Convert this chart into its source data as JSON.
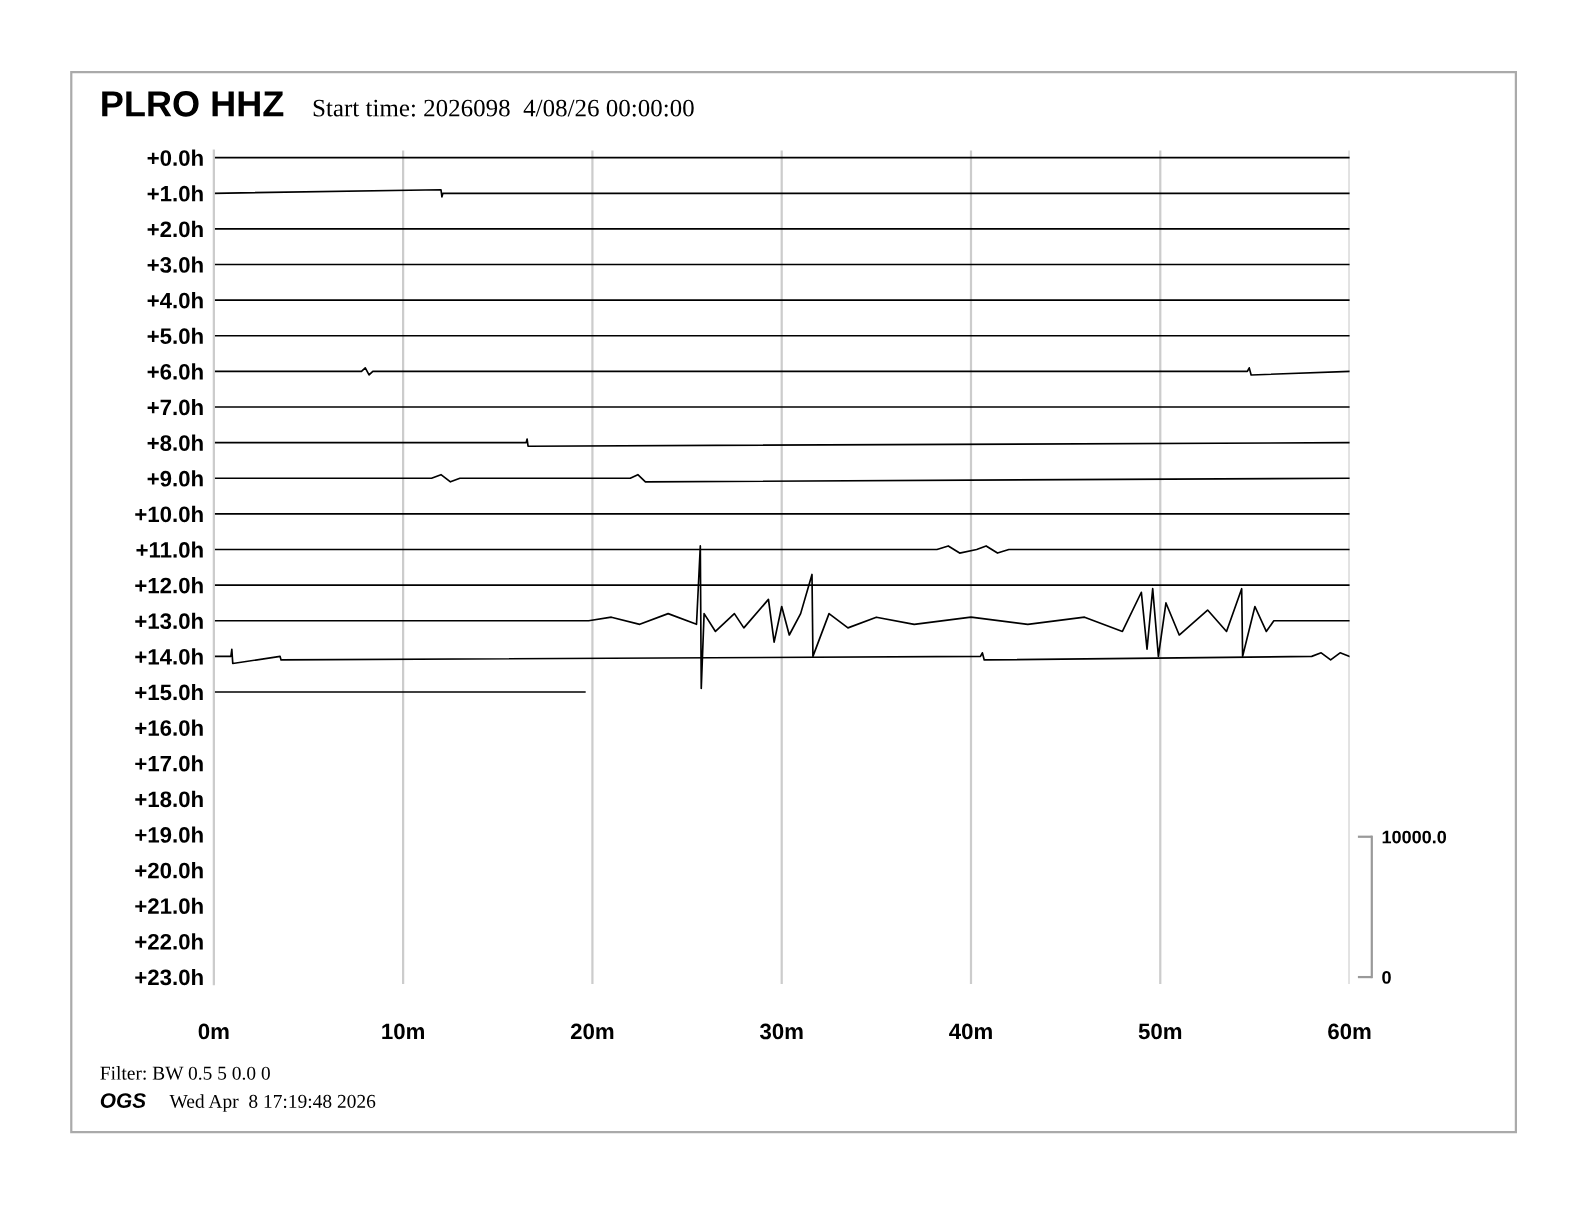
{
  "chart_data": {
    "type": "line",
    "title": "PLRO HHZ",
    "subtitle": "Start time: 2026098  4/08/26 00:00:00",
    "annotations": [
      "Filter: BW 0.5 5 0.0 0",
      "OGS",
      "Wed Apr  8 17:19:48 2026"
    ],
    "xlim": [
      0,
      60
    ],
    "xticks": [
      {
        "value": 0,
        "label": "0m"
      },
      {
        "value": 10,
        "label": "10m"
      },
      {
        "value": 20,
        "label": "20m"
      },
      {
        "value": 30,
        "label": "30m"
      },
      {
        "value": 40,
        "label": "40m"
      },
      {
        "value": 50,
        "label": "50m"
      },
      {
        "value": 60,
        "label": "60m"
      }
    ],
    "ylim": [
      23.2,
      -0.2
    ],
    "yticks": [
      {
        "value": 0,
        "label": "+0.0h"
      },
      {
        "value": 1,
        "label": "+1.0h"
      },
      {
        "value": 2,
        "label": "+2.0h"
      },
      {
        "value": 3,
        "label": "+3.0h"
      },
      {
        "value": 4,
        "label": "+4.0h"
      },
      {
        "value": 5,
        "label": "+5.0h"
      },
      {
        "value": 6,
        "label": "+6.0h"
      },
      {
        "value": 7,
        "label": "+7.0h"
      },
      {
        "value": 8,
        "label": "+8.0h"
      },
      {
        "value": 9,
        "label": "+9.0h"
      },
      {
        "value": 10,
        "label": "+10.0h"
      },
      {
        "value": 11,
        "label": "+11.0h"
      },
      {
        "value": 12,
        "label": "+12.0h"
      },
      {
        "value": 13,
        "label": "+13.0h"
      },
      {
        "value": 14,
        "label": "+14.0h"
      },
      {
        "value": 15,
        "label": "+15.0h"
      },
      {
        "value": 16,
        "label": "+16.0h"
      },
      {
        "value": 17,
        "label": "+17.0h"
      },
      {
        "value": 18,
        "label": "+18.0h"
      },
      {
        "value": 19,
        "label": "+19.0h"
      },
      {
        "value": 20,
        "label": "+20.0h"
      },
      {
        "value": 21,
        "label": "+21.0h"
      },
      {
        "value": 22,
        "label": "+22.0h"
      },
      {
        "value": 23,
        "label": "+23.0h"
      }
    ],
    "y2lim": [
      -500,
      58900
    ],
    "y2ticks": [
      {
        "value": 0,
        "label": "0"
      },
      {
        "value": 10000,
        "label": "10000.0"
      }
    ],
    "grid": "x",
    "series": [
      {
        "color": "#000000",
        "x": [
          0,
          60
        ],
        "values": [
          0,
          0
        ]
      },
      {
        "color": "#000000",
        "x": [
          0,
          12.0,
          12.05,
          12.1,
          60
        ],
        "values": [
          1,
          0.9,
          1.1,
          1,
          1
        ]
      },
      {
        "color": "#000000",
        "x": [
          0,
          60
        ],
        "values": [
          2,
          2
        ]
      },
      {
        "color": "#000000",
        "x": [
          0,
          60
        ],
        "values": [
          3,
          3
        ]
      },
      {
        "color": "#000000",
        "x": [
          0,
          60
        ],
        "values": [
          4,
          4
        ]
      },
      {
        "color": "#000000",
        "x": [
          0,
          60
        ],
        "values": [
          5,
          5
        ]
      },
      {
        "color": "#000000",
        "x": [
          0,
          7.8,
          8.0,
          8.2,
          8.4,
          54.6,
          54.7,
          54.8,
          60
        ],
        "values": [
          6,
          6,
          5.9,
          6.1,
          6,
          6,
          5.9,
          6.1,
          6
        ]
      },
      {
        "color": "#000000",
        "x": [
          0,
          60
        ],
        "values": [
          7,
          7
        ]
      },
      {
        "color": "#000000",
        "x": [
          0,
          16.5,
          16.55,
          16.6,
          60
        ],
        "values": [
          8,
          8,
          7.9,
          8.1,
          8
        ]
      },
      {
        "color": "#000000",
        "x": [
          0,
          11.5,
          12.0,
          12.5,
          13.0,
          22.0,
          22.4,
          22.8,
          60
        ],
        "values": [
          9,
          9,
          8.9,
          9.1,
          9,
          9,
          8.9,
          9.1,
          9
        ]
      },
      {
        "color": "#000000",
        "x": [
          0,
          60
        ],
        "values": [
          10,
          10
        ]
      },
      {
        "color": "#000000",
        "x": [
          0,
          38.2,
          38.8,
          39.4,
          40.3,
          40.8,
          41.4,
          42.0,
          60
        ],
        "values": [
          11,
          11,
          10.9,
          11.1,
          11,
          10.9,
          11.1,
          11,
          11
        ]
      },
      {
        "color": "#000000",
        "x": [
          0,
          60
        ],
        "values": [
          12,
          12
        ]
      },
      {
        "color": "#000000",
        "x": [
          0,
          19.8,
          21,
          22.5,
          24,
          25.5,
          25.7,
          25.75,
          25.9,
          26.5,
          27.5,
          28,
          29.3,
          29.6,
          30,
          30.4,
          31,
          31.6,
          31.65,
          32.5,
          33.5,
          35,
          37,
          40,
          43,
          46,
          48,
          49,
          49.3,
          49.6,
          49.9,
          50.3,
          51,
          52.5,
          53.5,
          54.3,
          54.35,
          55,
          55.6,
          56,
          60
        ],
        "values": [
          13,
          13,
          12.9,
          13.1,
          12.8,
          13.1,
          10.9,
          14.9,
          12.8,
          13.3,
          12.8,
          13.2,
          12.4,
          13.6,
          12.6,
          13.4,
          12.8,
          11.7,
          14.0,
          12.8,
          13.2,
          12.9,
          13.1,
          12.9,
          13.1,
          12.9,
          13.3,
          12.2,
          13.8,
          12.1,
          14.0,
          12.5,
          13.4,
          12.7,
          13.3,
          12.1,
          14.0,
          12.6,
          13.3,
          13,
          13
        ]
      },
      {
        "color": "#000000",
        "x": [
          0,
          0.9,
          0.95,
          1.0,
          3.5,
          3.55,
          40.5,
          40.6,
          40.7,
          58.0,
          58.5,
          59.0,
          59.5,
          60
        ],
        "values": [
          14,
          14,
          13.8,
          14.2,
          14,
          14.1,
          14,
          13.9,
          14.1,
          14,
          13.9,
          14.1,
          13.9,
          14
        ]
      },
      {
        "color": "#000000",
        "x": [
          0,
          19.6
        ],
        "values": [
          15,
          15
        ]
      }
    ]
  }
}
